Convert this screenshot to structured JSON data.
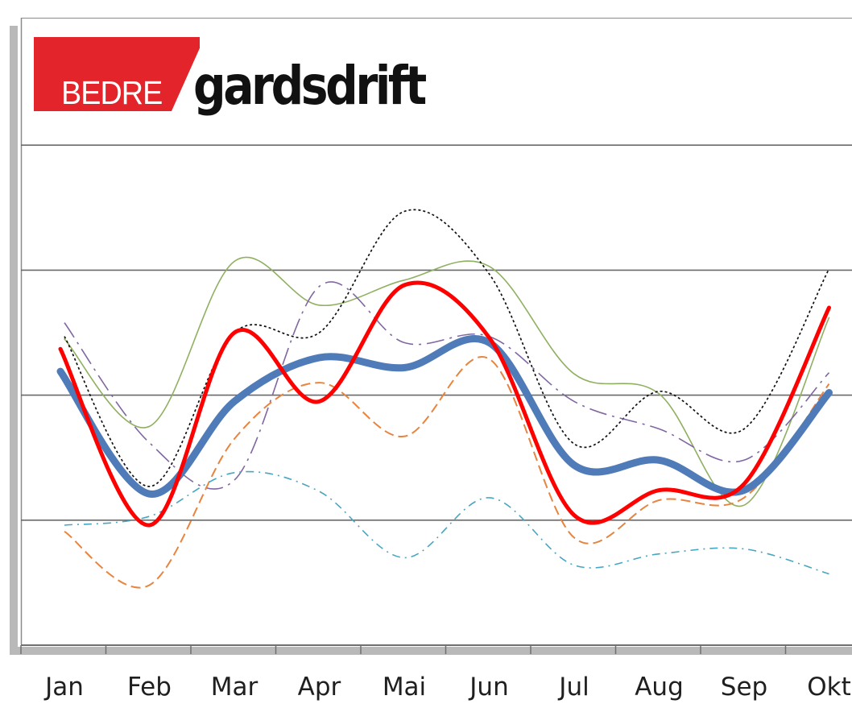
{
  "logo": {
    "word_red": "BEDRE",
    "word_black": "gardsdrift",
    "brand_red": "#e3242b",
    "brand_black": "#111111"
  },
  "chart_data": {
    "type": "line",
    "title": "",
    "xlabel": "",
    "ylabel": "",
    "categories": [
      "Jan",
      "Feb",
      "Mar",
      "Apr",
      "Mai",
      "Jun",
      "Jul",
      "Aug",
      "Sep",
      "Okt"
    ],
    "ylim": [
      0,
      5
    ],
    "y_gridlines": [
      1,
      2,
      3,
      4
    ],
    "grid": true,
    "legend": "none",
    "series": [
      {
        "color": "#8fb060",
        "style": "solid-thin",
        "values": [
          2.45,
          1.75,
          3.07,
          2.72,
          2.92,
          3.03,
          2.17,
          2.01,
          1.12,
          2.62
        ]
      },
      {
        "color": "#111111",
        "style": "dotted",
        "values": [
          2.47,
          1.27,
          2.5,
          2.5,
          3.47,
          2.97,
          1.61,
          2.03,
          1.73,
          3.01
        ]
      },
      {
        "color": "#8067a2",
        "style": "dash-dot-long",
        "values": [
          2.58,
          1.62,
          1.32,
          2.87,
          2.42,
          2.47,
          1.95,
          1.73,
          1.48,
          2.18
        ]
      },
      {
        "color": "#e8843e",
        "style": "dashed",
        "values": [
          0.91,
          0.48,
          1.65,
          2.1,
          1.67,
          2.29,
          0.86,
          1.16,
          1.18,
          2.09
        ]
      },
      {
        "color": "#48a6c1",
        "style": "dash-dot",
        "values": [
          0.96,
          1.03,
          1.38,
          1.23,
          0.7,
          1.18,
          0.64,
          0.73,
          0.77,
          0.57
        ]
      },
      {
        "color": "#4f7bb8",
        "style": "thick",
        "values": [
          2.19,
          1.21,
          1.95,
          2.3,
          2.22,
          2.42,
          1.44,
          1.48,
          1.24,
          2.02
        ]
      },
      {
        "color": "#ff0000",
        "style": "bold",
        "values": [
          2.37,
          0.96,
          2.5,
          1.95,
          2.88,
          2.46,
          1.04,
          1.24,
          1.29,
          2.7
        ]
      }
    ]
  }
}
